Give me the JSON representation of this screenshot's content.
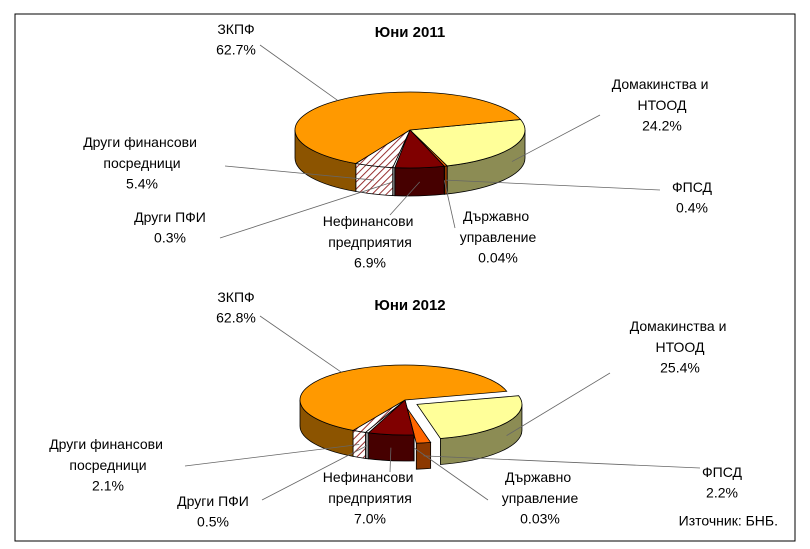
{
  "chart_data": [
    {
      "type": "pie",
      "title": "Юни 2011",
      "categories": [
        "Домакинства и НТООД",
        "ФПСД",
        "Държавно управление",
        "Нефинансови предприятия",
        "Други ПФИ",
        "Други финансови посредници",
        "ЗКПФ"
      ],
      "values": [
        24.2,
        0.4,
        0.04,
        6.9,
        0.3,
        5.4,
        62.7
      ],
      "value_labels": [
        "24.2%",
        "0.4%",
        "0.04%",
        "6.9%",
        "0.3%",
        "5.4%",
        "62.7%"
      ],
      "colors": [
        "#FFFF99",
        "#FF6600",
        "#993300",
        "#800000",
        "#FFFFFF",
        "#996666",
        "#FF9900"
      ],
      "hatch": [
        5
      ],
      "explode": []
    },
    {
      "type": "pie",
      "title": "Юни 2012",
      "categories": [
        "Домакинства и НТООД",
        "ФПСД",
        "Държавно управление",
        "Нефинансови предприятия",
        "Други ПФИ",
        "Други финансови посредници",
        "ЗКПФ"
      ],
      "values": [
        25.4,
        2.2,
        0.03,
        7.0,
        0.5,
        2.1,
        62.8
      ],
      "value_labels": [
        "25.4%",
        "2.2%",
        "0.03%",
        "7.0%",
        "0.5%",
        "2.1%",
        "62.8%"
      ],
      "colors": [
        "#FFFF99",
        "#FF6600",
        "#993300",
        "#800000",
        "#FFFFFF",
        "#996666",
        "#FF9900"
      ],
      "hatch": [
        5
      ],
      "explode": [
        0,
        1
      ]
    }
  ],
  "source": "Източник: БНБ."
}
